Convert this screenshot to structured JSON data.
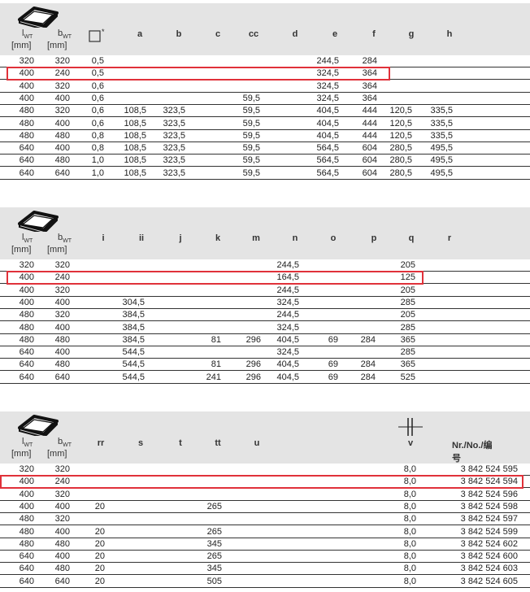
{
  "header_common": {
    "l_label": "l",
    "l_sub": "WT",
    "b_label": "b",
    "b_sub": "WT",
    "unit": "[mm]"
  },
  "colors": {
    "highlight": "#e0313a",
    "header_bg": "#e4e4e4"
  },
  "tables": [
    {
      "columns": [
        "a",
        "b",
        "c",
        "cc",
        "d",
        "e",
        "f",
        "g",
        "h"
      ],
      "square_label": "*",
      "rows": [
        [
          "320",
          "320",
          "0,5",
          "",
          "",
          "",
          "",
          "",
          "244,5",
          "284",
          "",
          ""
        ],
        [
          "400",
          "240",
          "0,5",
          "",
          "",
          "",
          "",
          "",
          "324,5",
          "364",
          "",
          ""
        ],
        [
          "400",
          "320",
          "0,6",
          "",
          "",
          "",
          "",
          "",
          "324,5",
          "364",
          "",
          ""
        ],
        [
          "400",
          "400",
          "0,6",
          "",
          "",
          "",
          "59,5",
          "",
          "324,5",
          "364",
          "",
          ""
        ],
        [
          "480",
          "320",
          "0,6",
          "108,5",
          "323,5",
          "",
          "59,5",
          "",
          "404,5",
          "444",
          "120,5",
          "335,5"
        ],
        [
          "480",
          "400",
          "0,6",
          "108,5",
          "323,5",
          "",
          "59,5",
          "",
          "404,5",
          "444",
          "120,5",
          "335,5"
        ],
        [
          "480",
          "480",
          "0,8",
          "108,5",
          "323,5",
          "",
          "59,5",
          "",
          "404,5",
          "444",
          "120,5",
          "335,5"
        ],
        [
          "640",
          "400",
          "0,8",
          "108,5",
          "323,5",
          "",
          "59,5",
          "",
          "564,5",
          "604",
          "280,5",
          "495,5"
        ],
        [
          "640",
          "480",
          "1,0",
          "108,5",
          "323,5",
          "",
          "59,5",
          "",
          "564,5",
          "604",
          "280,5",
          "495,5"
        ],
        [
          "640",
          "640",
          "1,0",
          "108,5",
          "323,5",
          "",
          "59,5",
          "",
          "564,5",
          "604",
          "280,5",
          "495,5"
        ]
      ],
      "highlighted_row": 1
    },
    {
      "columns": [
        "i",
        "ii",
        "j",
        "k",
        "m",
        "n",
        "o",
        "p",
        "q",
        "r"
      ],
      "rows": [
        [
          "320",
          "320",
          "",
          "",
          "",
          "",
          "",
          "244,5",
          "",
          "",
          "205",
          ""
        ],
        [
          "400",
          "240",
          "",
          "",
          "",
          "",
          "",
          "164,5",
          "",
          "",
          "125",
          ""
        ],
        [
          "400",
          "320",
          "",
          "",
          "",
          "",
          "",
          "244,5",
          "",
          "",
          "205",
          ""
        ],
        [
          "400",
          "400",
          "",
          "304,5",
          "",
          "",
          "",
          "324,5",
          "",
          "",
          "285",
          ""
        ],
        [
          "480",
          "320",
          "",
          "384,5",
          "",
          "",
          "",
          "244,5",
          "",
          "",
          "205",
          ""
        ],
        [
          "480",
          "400",
          "",
          "384,5",
          "",
          "",
          "",
          "324,5",
          "",
          "",
          "285",
          ""
        ],
        [
          "480",
          "480",
          "",
          "384,5",
          "",
          "81",
          "296",
          "404,5",
          "69",
          "284",
          "365",
          ""
        ],
        [
          "640",
          "400",
          "",
          "544,5",
          "",
          "",
          "",
          "324,5",
          "",
          "",
          "285",
          ""
        ],
        [
          "640",
          "480",
          "",
          "544,5",
          "",
          "81",
          "296",
          "404,5",
          "69",
          "284",
          "365",
          ""
        ],
        [
          "640",
          "640",
          "",
          "544,5",
          "",
          "241",
          "296",
          "404,5",
          "69",
          "284",
          "525",
          ""
        ]
      ],
      "highlighted_row": 1
    },
    {
      "columns": [
        "rr",
        "s",
        "t",
        "tt",
        "u",
        "v",
        "Nr./No./编号"
      ],
      "rows": [
        [
          "320",
          "320",
          "",
          "",
          "",
          "",
          "",
          "8,0",
          "3 842 524 595"
        ],
        [
          "400",
          "240",
          "",
          "",
          "",
          "",
          "",
          "8,0",
          "3 842 524 594"
        ],
        [
          "400",
          "320",
          "",
          "",
          "",
          "",
          "",
          "8,0",
          "3 842 524 596"
        ],
        [
          "400",
          "400",
          "20",
          "",
          "",
          "265",
          "",
          "8,0",
          "3 842 524 598"
        ],
        [
          "480",
          "320",
          "",
          "",
          "",
          "",
          "",
          "8,0",
          "3 842 524 597"
        ],
        [
          "480",
          "400",
          "20",
          "",
          "",
          "265",
          "",
          "8,0",
          "3 842 524 599"
        ],
        [
          "480",
          "480",
          "20",
          "",
          "",
          "345",
          "",
          "8,0",
          "3 842 524 602"
        ],
        [
          "640",
          "400",
          "20",
          "",
          "",
          "265",
          "",
          "8,0",
          "3 842 524 600"
        ],
        [
          "640",
          "480",
          "20",
          "",
          "",
          "345",
          "",
          "8,0",
          "3 842 524 603"
        ],
        [
          "640",
          "640",
          "20",
          "",
          "",
          "505",
          "",
          "8,0",
          "3 842 524 605"
        ]
      ],
      "highlighted_row": 1
    }
  ]
}
